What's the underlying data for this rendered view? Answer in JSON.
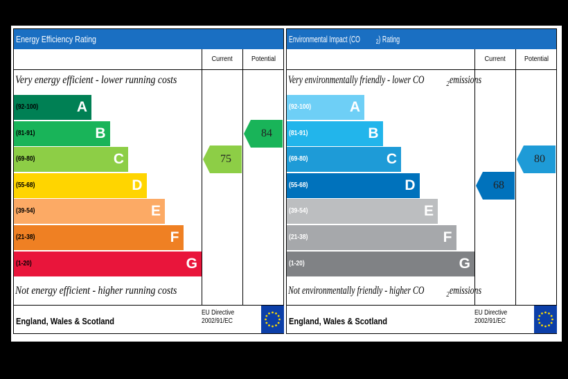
{
  "chart_data": [
    {
      "type": "bar",
      "title": "Energy Efficiency Rating",
      "top_caption": "Very energy efficient - lower running costs",
      "bottom_caption": "Not energy efficient - higher running costs",
      "columns": [
        "Current",
        "Potential"
      ],
      "bands": [
        {
          "range": "(92-100)",
          "letter": "A",
          "color": "#008054"
        },
        {
          "range": "(81-91)",
          "letter": "B",
          "color": "#19b459"
        },
        {
          "range": "(69-80)",
          "letter": "C",
          "color": "#8dce46"
        },
        {
          "range": "(55-68)",
          "letter": "D",
          "color": "#ffd500"
        },
        {
          "range": "(39-54)",
          "letter": "E",
          "color": "#fcaa65"
        },
        {
          "range": "(21-38)",
          "letter": "F",
          "color": "#ef8023"
        },
        {
          "range": "(1-20)",
          "letter": "G",
          "color": "#e9153b"
        }
      ],
      "current": {
        "value": 75,
        "band": "C"
      },
      "potential": {
        "value": 84,
        "band": "B"
      },
      "footer": "England, Wales & Scotland",
      "directive_line1": "EU Directive",
      "directive_line2": "2002/91/EC"
    },
    {
      "type": "bar",
      "title_prefix": "Environmental Impact (CO",
      "title_sub": "2",
      "title_suffix": ") Rating",
      "top_caption_prefix": "Very environmentally friendly - lower CO",
      "top_caption_sub": "2",
      "top_caption_suffix": " emissions",
      "bottom_caption_prefix": "Not environmentally friendly - higher CO",
      "bottom_caption_sub": "2",
      "bottom_caption_suffix": " emissions",
      "columns": [
        "Current",
        "Potential"
      ],
      "bands": [
        {
          "range": "(92-100)",
          "letter": "A",
          "color": "#6ecff6"
        },
        {
          "range": "(81-91)",
          "letter": "B",
          "color": "#22b5eb"
        },
        {
          "range": "(69-80)",
          "letter": "C",
          "color": "#1e9bd7"
        },
        {
          "range": "(55-68)",
          "letter": "D",
          "color": "#0072bc"
        },
        {
          "range": "(39-54)",
          "letter": "E",
          "color": "#bcbec0"
        },
        {
          "range": "(21-38)",
          "letter": "F",
          "color": "#a6a8ab"
        },
        {
          "range": "(1-20)",
          "letter": "G",
          "color": "#808285"
        }
      ],
      "current": {
        "value": 68,
        "band": "D"
      },
      "potential": {
        "value": 80,
        "band": "C"
      },
      "footer": "England, Wales & Scotland",
      "directive_line1": "EU Directive",
      "directive_line2": "2002/91/EC"
    }
  ]
}
